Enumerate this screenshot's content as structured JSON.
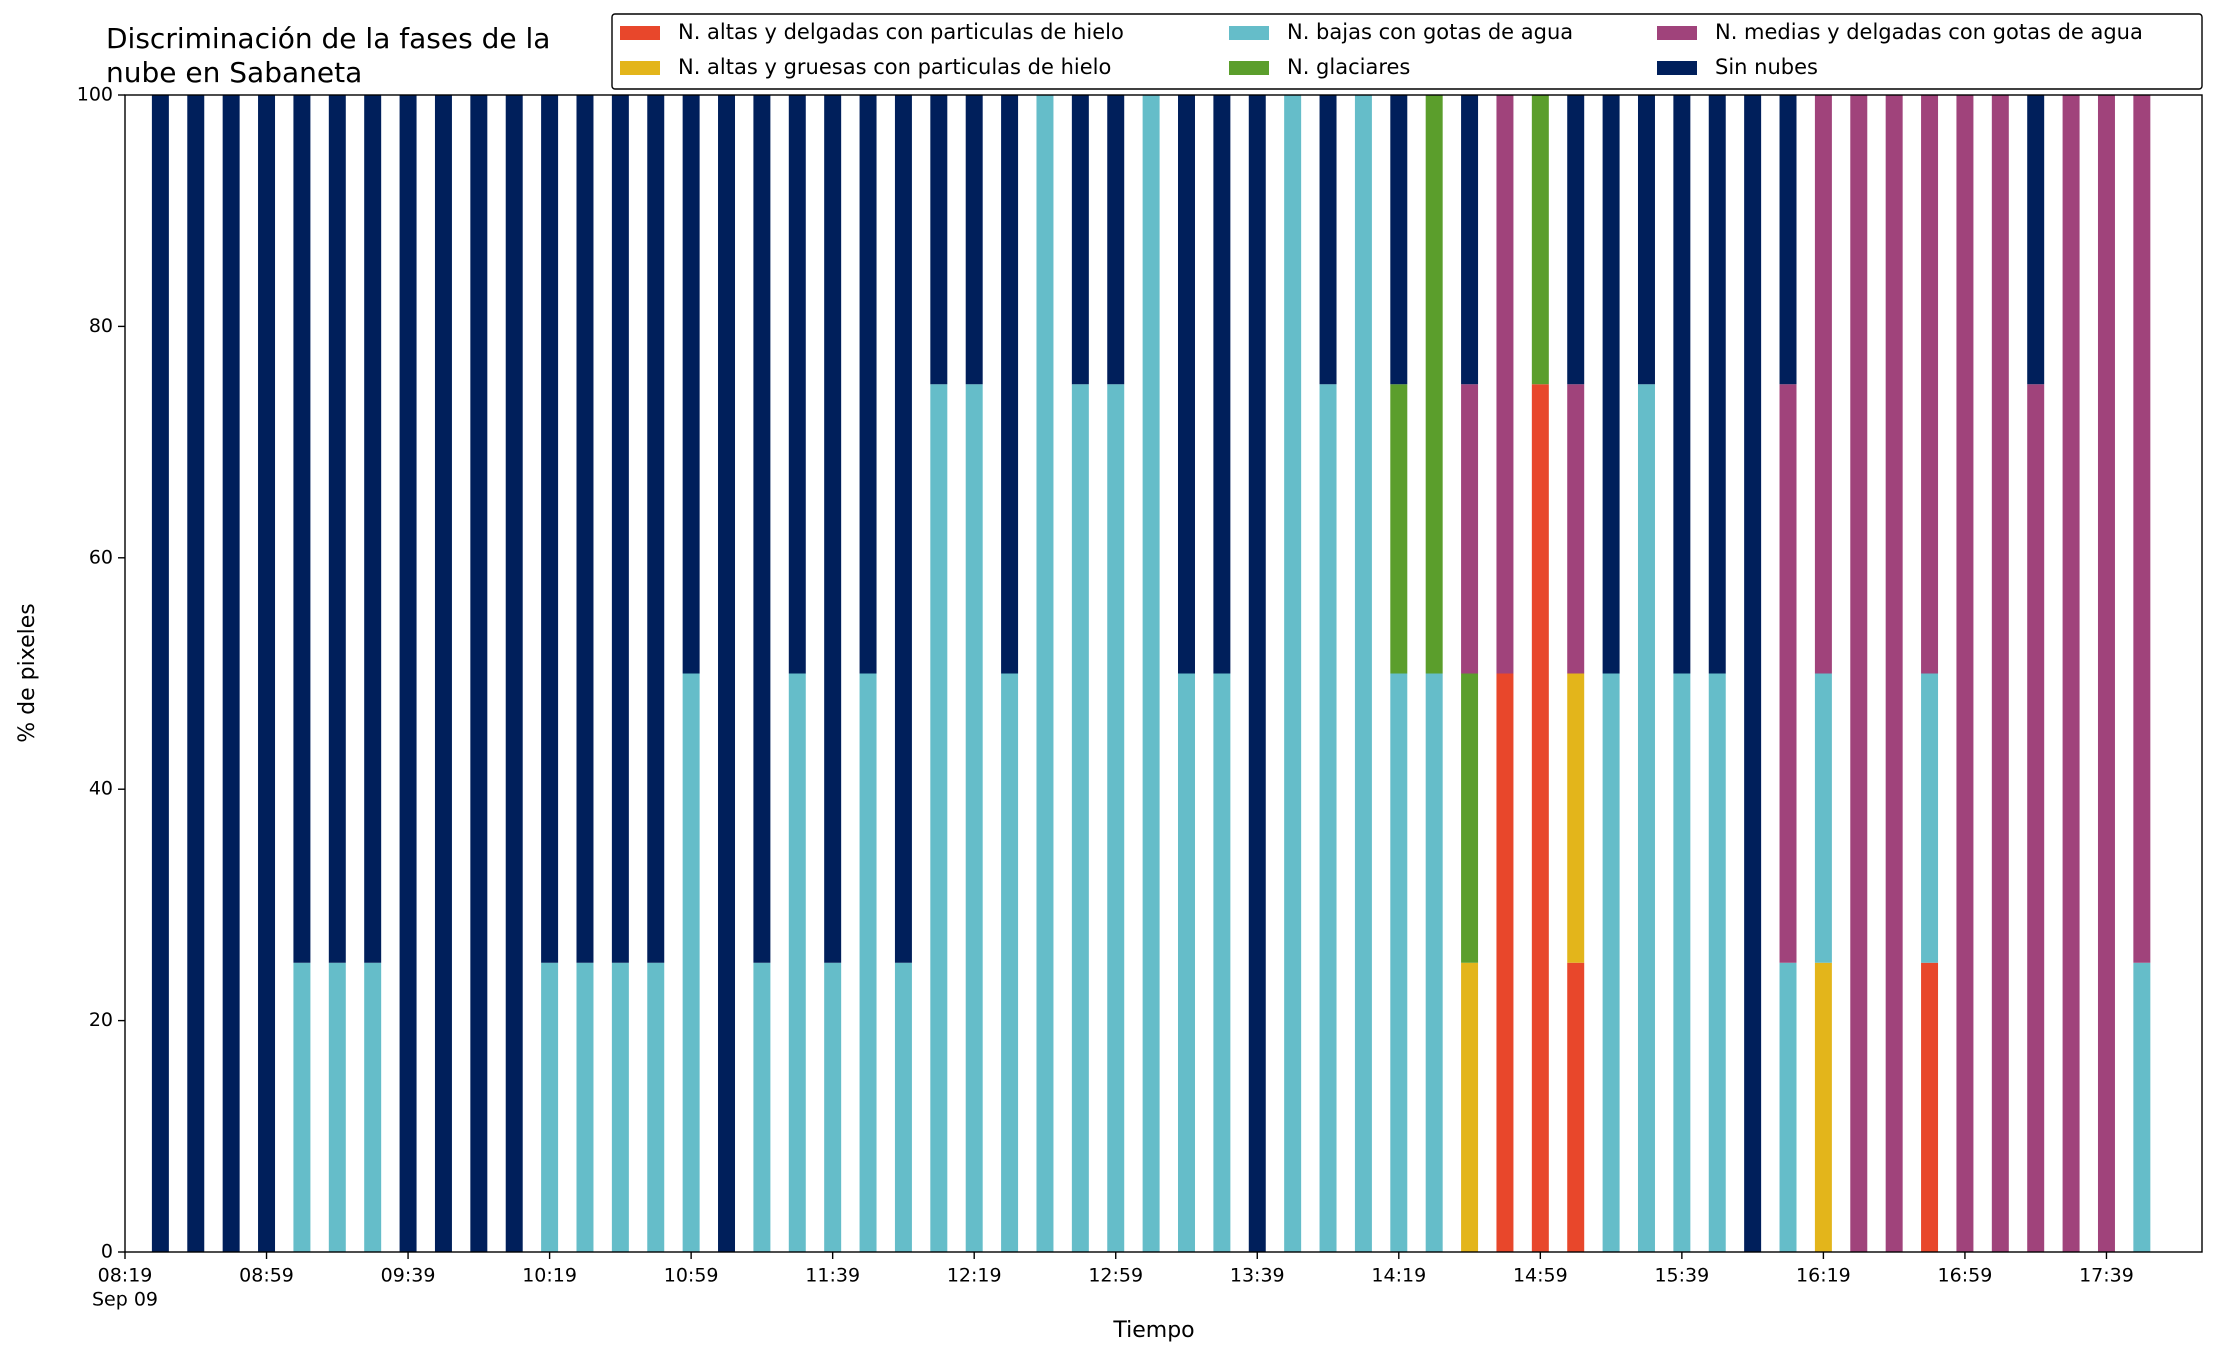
{
  "chart_data": {
    "type": "stacked_bar",
    "title": [
      "Discriminación de la fases de la",
      "nube en Sabaneta"
    ],
    "xlabel": "Tiempo",
    "ylabel": "% de pixeles",
    "date_label": "Sep 09",
    "x": [
      "08:29",
      "08:39",
      "08:49",
      "08:59",
      "09:09",
      "09:19",
      "09:29",
      "09:39",
      "09:49",
      "09:59",
      "10:09",
      "10:19",
      "10:29",
      "10:39",
      "10:49",
      "10:59",
      "11:09",
      "11:19",
      "11:29",
      "11:39",
      "11:49",
      "11:59",
      "12:09",
      "12:19",
      "12:29",
      "12:39",
      "12:49",
      "12:59",
      "13:09",
      "13:19",
      "13:29",
      "13:39",
      "13:49",
      "13:59",
      "14:09",
      "14:19",
      "14:29",
      "14:39",
      "14:49",
      "14:59",
      "15:09",
      "15:19",
      "15:29",
      "15:39",
      "15:49",
      "15:59",
      "16:09",
      "16:19",
      "16:29",
      "16:39",
      "16:49",
      "16:59",
      "17:09",
      "17:19",
      "17:29",
      "17:39",
      "17:49"
    ],
    "xlim": [
      "08:19",
      "18:06"
    ],
    "xticks": [
      "08:19",
      "08:59",
      "09:39",
      "10:19",
      "10:59",
      "11:39",
      "12:19",
      "12:59",
      "13:39",
      "14:19",
      "14:59",
      "15:39",
      "16:19",
      "16:59",
      "17:39"
    ],
    "ylim": [
      0,
      100
    ],
    "yticks": [
      0,
      20,
      40,
      60,
      80,
      100
    ],
    "legend": "upper right",
    "series": [
      {
        "name": "N. altas y delgadas con particulas de hielo",
        "color": "#e8472b",
        "values": [
          0,
          0,
          0,
          0,
          0,
          0,
          0,
          0,
          0,
          0,
          0,
          0,
          0,
          0,
          0,
          0,
          0,
          0,
          0,
          0,
          0,
          0,
          0,
          0,
          0,
          0,
          0,
          0,
          0,
          0,
          0,
          0,
          0,
          0,
          0,
          0,
          0,
          0,
          50,
          75,
          25,
          0,
          0,
          0,
          0,
          0,
          0,
          0,
          0,
          0,
          25,
          0,
          0,
          0,
          0,
          0,
          0
        ]
      },
      {
        "name": "N. altas y gruesas con particulas de hielo",
        "color": "#e3b51b",
        "values": [
          0,
          0,
          0,
          0,
          0,
          0,
          0,
          0,
          0,
          0,
          0,
          0,
          0,
          0,
          0,
          0,
          0,
          0,
          0,
          0,
          0,
          0,
          0,
          0,
          0,
          0,
          0,
          0,
          0,
          0,
          0,
          0,
          0,
          0,
          0,
          0,
          0,
          25,
          0,
          0,
          25,
          0,
          0,
          0,
          0,
          0,
          0,
          25,
          0,
          0,
          0,
          0,
          0,
          0,
          0,
          0,
          0
        ]
      },
      {
        "name": "N. bajas con gotas de agua",
        "color": "#65bdc9",
        "values": [
          0,
          0,
          0,
          0,
          25,
          25,
          25,
          0,
          0,
          0,
          0,
          25,
          25,
          25,
          25,
          50,
          0,
          25,
          50,
          25,
          50,
          25,
          75,
          75,
          50,
          100,
          75,
          75,
          100,
          50,
          50,
          0,
          100,
          75,
          100,
          50,
          50,
          0,
          0,
          0,
          0,
          50,
          75,
          50,
          50,
          0,
          25,
          25,
          0,
          0,
          25,
          0,
          0,
          0,
          0,
          0,
          25
        ]
      },
      {
        "name": "N. glaciares",
        "color": "#5b9e2c",
        "values": [
          0,
          0,
          0,
          0,
          0,
          0,
          0,
          0,
          0,
          0,
          0,
          0,
          0,
          0,
          0,
          0,
          0,
          0,
          0,
          0,
          0,
          0,
          0,
          0,
          0,
          0,
          0,
          0,
          0,
          0,
          0,
          0,
          0,
          0,
          0,
          25,
          50,
          25,
          0,
          25,
          0,
          0,
          0,
          0,
          0,
          0,
          0,
          0,
          0,
          0,
          0,
          0,
          0,
          0,
          0,
          0,
          0
        ]
      },
      {
        "name": "N. medias y delgadas con gotas de agua",
        "color": "#a0437b",
        "values": [
          0,
          0,
          0,
          0,
          0,
          0,
          0,
          0,
          0,
          0,
          0,
          0,
          0,
          0,
          0,
          0,
          0,
          0,
          0,
          0,
          0,
          0,
          0,
          0,
          0,
          0,
          0,
          0,
          0,
          0,
          0,
          0,
          0,
          0,
          0,
          0,
          0,
          25,
          50,
          0,
          25,
          0,
          0,
          0,
          0,
          0,
          50,
          50,
          100,
          100,
          50,
          100,
          100,
          75,
          100,
          100,
          75
        ]
      },
      {
        "name": "Sin nubes",
        "color": "#001f5b",
        "values": [
          100,
          100,
          100,
          100,
          75,
          75,
          75,
          100,
          100,
          100,
          100,
          75,
          75,
          75,
          75,
          50,
          100,
          75,
          50,
          75,
          50,
          75,
          25,
          25,
          50,
          0,
          25,
          25,
          0,
          50,
          50,
          100,
          0,
          25,
          0,
          25,
          0,
          25,
          0,
          0,
          25,
          50,
          25,
          50,
          50,
          100,
          25,
          0,
          0,
          0,
          0,
          0,
          0,
          25,
          0,
          0,
          0
        ]
      }
    ]
  }
}
